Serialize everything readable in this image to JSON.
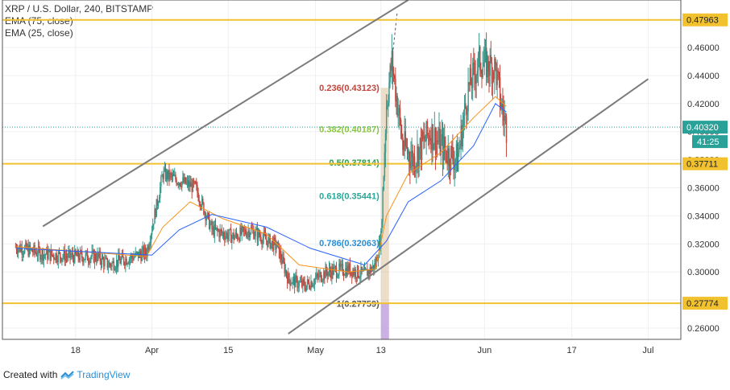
{
  "legend": {
    "title": "XRP / U.S. Dollar, 240, BITSTAMP",
    "ema75": "EMA (75, close)",
    "ema25": "EMA (25, close)"
  },
  "footer": {
    "created_with": "Created with",
    "brand": "TradingView"
  },
  "colors": {
    "level": "#f2c12e",
    "up": "#3a9a8e",
    "down": "#c2463d",
    "ema25": "#f7931a",
    "ema75": "#2962ff",
    "channel": "#7b7b7b",
    "price_line": "#2aa198",
    "fib_band": "#c8a060",
    "fib_vol": "#b58ed8"
  },
  "chart_data": {
    "type": "candlestick",
    "symbol": "XRP / U.S. Dollar",
    "interval": "240",
    "exchange": "BITSTAMP",
    "ylim": [
      0.252,
      0.4938
    ],
    "yticks": [
      "0.26000",
      "0.28000",
      "0.30000",
      "0.32000",
      "0.34000",
      "0.36000",
      "0.38000",
      "0.40000",
      "0.42000",
      "0.44000",
      "0.46000"
    ],
    "xticks": [
      "18",
      "Apr",
      "15",
      "May",
      "13",
      "Jun",
      "17",
      "Jul"
    ],
    "horizontal_levels": [
      0.47963,
      0.37711,
      0.27774
    ],
    "axis_badges": {
      "level_high": "0.47963",
      "level_mid": "0.37711",
      "level_low": "0.27774",
      "last_price": "0.40320",
      "countdown": "41:25"
    },
    "fibonacci": [
      {
        "label": "0.236(0.43123)",
        "value": 0.43123
      },
      {
        "label": "0.382(0.40187)",
        "value": 0.40187
      },
      {
        "label": "0.5(0.37814)",
        "value": 0.37814
      },
      {
        "label": "0.618(0.35441)",
        "value": 0.35441
      },
      {
        "label": "0.786(0.32063)",
        "value": 0.32063
      },
      {
        "label": "1(0.27759)",
        "value": 0.27759
      }
    ],
    "price_path": [
      [
        "2019-03-07",
        0.318
      ],
      [
        "2019-03-12",
        0.313
      ],
      [
        "2019-03-17",
        0.311
      ],
      [
        "2019-03-22",
        0.311
      ],
      [
        "2019-03-24",
        0.305
      ],
      [
        "2019-03-27",
        0.309
      ],
      [
        "2019-03-31",
        0.314
      ],
      [
        "2019-04-02",
        0.35
      ],
      [
        "2019-04-03",
        0.37
      ],
      [
        "2019-04-06",
        0.365
      ],
      [
        "2019-04-09",
        0.36
      ],
      [
        "2019-04-12",
        0.33
      ],
      [
        "2019-04-16",
        0.325
      ],
      [
        "2019-04-19",
        0.33
      ],
      [
        "2019-04-24",
        0.318
      ],
      [
        "2019-04-26",
        0.295
      ],
      [
        "2019-04-29",
        0.29
      ],
      [
        "2019-05-03",
        0.3
      ],
      [
        "2019-05-07",
        0.302
      ],
      [
        "2019-05-10",
        0.298
      ],
      [
        "2019-05-12",
        0.305
      ],
      [
        "2019-05-13",
        0.325
      ],
      [
        "2019-05-14",
        0.42
      ],
      [
        "2019-05-15",
        0.45
      ],
      [
        "2019-05-17",
        0.39
      ],
      [
        "2019-05-19",
        0.38
      ],
      [
        "2019-05-22",
        0.4
      ],
      [
        "2019-05-25",
        0.385
      ],
      [
        "2019-05-27",
        0.38
      ],
      [
        "2019-05-29",
        0.43
      ],
      [
        "2019-05-31",
        0.45
      ],
      [
        "2019-06-03",
        0.445
      ],
      [
        "2019-06-04",
        0.42
      ],
      [
        "2019-06-05",
        0.403
      ]
    ],
    "ema25_path": [
      [
        "2019-03-07",
        0.318
      ],
      [
        "2019-03-31",
        0.311
      ],
      [
        "2019-04-03",
        0.332
      ],
      [
        "2019-04-08",
        0.35
      ],
      [
        "2019-04-14",
        0.338
      ],
      [
        "2019-04-22",
        0.327
      ],
      [
        "2019-04-28",
        0.305
      ],
      [
        "2019-05-07",
        0.3
      ],
      [
        "2019-05-12",
        0.302
      ],
      [
        "2019-05-14",
        0.34
      ],
      [
        "2019-05-18",
        0.37
      ],
      [
        "2019-05-24",
        0.385
      ],
      [
        "2019-05-30",
        0.41
      ],
      [
        "2019-06-03",
        0.425
      ],
      [
        "2019-06-05",
        0.418
      ]
    ],
    "ema75_path": [
      [
        "2019-03-07",
        0.317
      ],
      [
        "2019-04-01",
        0.312
      ],
      [
        "2019-04-06",
        0.33
      ],
      [
        "2019-04-12",
        0.341
      ],
      [
        "2019-04-22",
        0.332
      ],
      [
        "2019-04-30",
        0.317
      ],
      [
        "2019-05-10",
        0.305
      ],
      [
        "2019-05-14",
        0.322
      ],
      [
        "2019-05-18",
        0.35
      ],
      [
        "2019-05-24",
        0.365
      ],
      [
        "2019-05-30",
        0.39
      ],
      [
        "2019-06-03",
        0.42
      ],
      [
        "2019-06-05",
        0.414
      ]
    ],
    "channel_lines": [
      [
        [
          "2019-03-12",
          0.3325
        ],
        [
          "2019-05-18",
          0.4938
        ]
      ],
      [
        [
          "2019-04-26",
          0.256
        ],
        [
          "2019-07-01",
          0.4375
        ]
      ]
    ]
  }
}
